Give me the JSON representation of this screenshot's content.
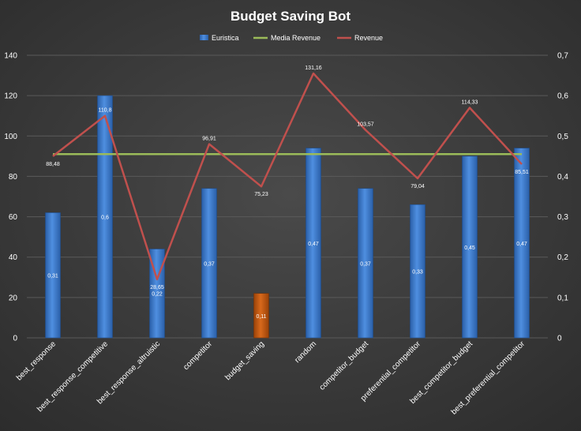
{
  "chart_data": {
    "type": "bar",
    "title": "Budget Saving Bot",
    "categories": [
      "best_response",
      "best_response_competitive",
      "best_response_altruistic",
      "competitor",
      "budget_saving",
      "random",
      "competitor_budget",
      "preferential_competitor",
      "best_competitor_budget",
      "best_preferential_competitor"
    ],
    "series": [
      {
        "name": "Euristica",
        "type": "bar",
        "axis": "left",
        "values": [
          62,
          120,
          44,
          74,
          22,
          94,
          74,
          66,
          90,
          94
        ],
        "labels": [
          "0,31",
          "0,6",
          "0,22",
          "0,37",
          "0,11",
          "0,47",
          "0,37",
          "0,33",
          "0,45",
          "0,47"
        ],
        "highlight_index": 4
      },
      {
        "name": "Media Revenue",
        "type": "line",
        "axis": "right",
        "values": [
          0.455,
          0.455,
          0.455,
          0.455,
          0.455,
          0.455,
          0.455,
          0.455,
          0.455,
          0.455
        ]
      },
      {
        "name": "Revenue",
        "type": "line",
        "axis": "right",
        "values": [
          0.45,
          0.55,
          0.145,
          0.48,
          0.375,
          0.655,
          0.515,
          0.395,
          0.57,
          0.43
        ],
        "labels": [
          "88,48",
          "110,8",
          "28,65",
          "96,91",
          "75,23",
          "131,16",
          "103,57",
          "79,04",
          "114,33",
          "85,51"
        ]
      }
    ],
    "y_left": {
      "min": 0,
      "max": 140,
      "ticks": [
        "0",
        "20",
        "40",
        "60",
        "80",
        "100",
        "120",
        "140"
      ]
    },
    "y_right": {
      "min": 0,
      "max": 0.7,
      "ticks": [
        "0",
        "0,1",
        "0,2",
        "0,3",
        "0,4",
        "0,5",
        "0,6",
        "0,7"
      ]
    },
    "legend": {
      "position": "top",
      "entries": [
        "Euristica",
        "Media Revenue",
        "Revenue"
      ]
    },
    "grid": true,
    "colors": {
      "bar": "#3f7fd0",
      "bar_highlight": "#c55a11",
      "media_line": "#9bbb59",
      "revenue_line": "#c0504d",
      "text": "#ffffff",
      "grid": "#5a5a5a",
      "background": "#404040"
    }
  }
}
